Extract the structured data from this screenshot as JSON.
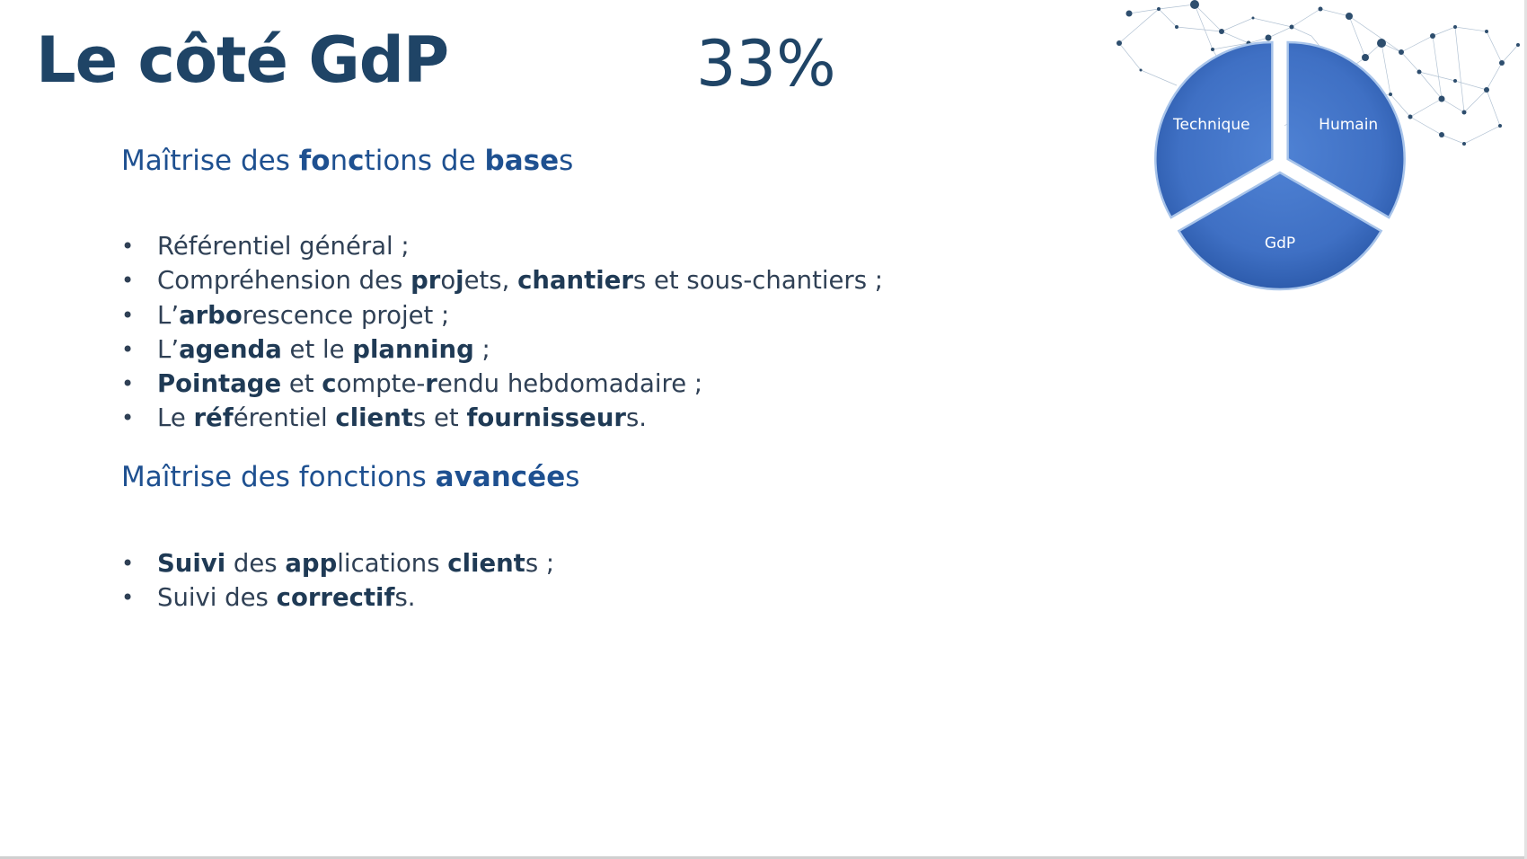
{
  "slide": {
    "title": "Le côté GdP",
    "percent": "33%"
  },
  "section_basics": {
    "heading_parts": [
      "Maîtrise des ",
      "fo",
      "n",
      "c",
      "tions de ",
      "base",
      "s"
    ],
    "items": [
      {
        "parts": [
          "Référentiel général ;"
        ]
      },
      {
        "parts": [
          "Compréhension des ",
          "pr",
          "o",
          "j",
          "ets, ",
          "chantier",
          "s et sous-chantiers ;"
        ]
      },
      {
        "parts": [
          "L’",
          "arbo",
          "rescence projet ;"
        ]
      },
      {
        "parts": [
          "L’",
          "agenda",
          " et le ",
          "planning",
          " ;"
        ]
      },
      {
        "parts": [
          "Pointage",
          " et ",
          "c",
          "ompte-",
          "r",
          "endu hebdomadaire ;"
        ]
      },
      {
        "parts": [
          "Le ",
          "réf",
          "érentiel ",
          "client",
          "s et ",
          "fournisseur",
          "s."
        ]
      }
    ]
  },
  "section_advanced": {
    "heading_parts": [
      "Maîtrise des fonctions ",
      "avancée",
      "s"
    ],
    "items": [
      {
        "parts": [
          "Suivi",
          " des ",
          "app",
          "lications ",
          "client",
          "s ;"
        ]
      },
      {
        "parts": [
          "Suivi des ",
          "correctif",
          "s."
        ]
      }
    ]
  },
  "chart_data": {
    "type": "pie",
    "categories": [
      "Technique",
      "Humain",
      "GdP"
    ],
    "values": [
      33.3,
      33.3,
      33.3
    ],
    "exploded": true,
    "colors": {
      "fill": "#3f70c4",
      "fill_dark": "#2a58a8",
      "edge": "#a8c4ea"
    }
  },
  "colors": {
    "title": "#1f4466",
    "heading": "#1e5090",
    "body": "#2f4055",
    "network": "#2e4e6e"
  },
  "decor": {
    "network_icon": "network-nodes-graphic"
  }
}
